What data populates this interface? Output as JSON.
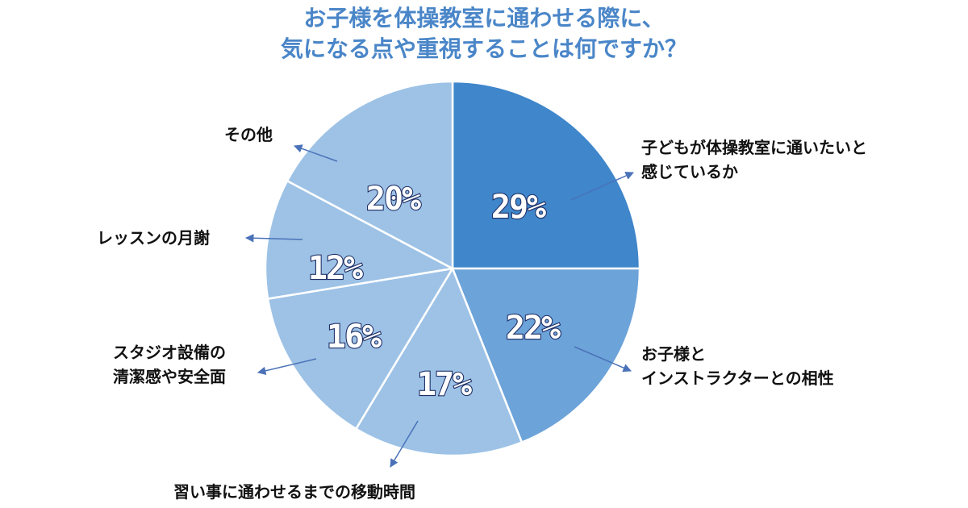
{
  "title_lines": [
    "お子様を体操教室に通わせる際に、",
    "気になる点や重視することは何ですか？"
  ],
  "colors": {
    "title": "#4a86c8",
    "arrow": "#4a72b8",
    "edge": "#ffffff"
  },
  "chart_data": {
    "type": "pie",
    "title": "お子様を体操教室に通わせる際に、気になる点や重視することは何ですか？",
    "unit": "%",
    "legend": "none",
    "slices": [
      {
        "label_lines": [
          "子どもが体操教室に通いたいと",
          "感じているか"
        ],
        "value": 29,
        "display": "29%",
        "color": "#3f86cb"
      },
      {
        "label_lines": [
          "お子様と",
          "インストラクターとの相性"
        ],
        "value": 22,
        "display": "22%",
        "color": "#6ca3d9"
      },
      {
        "label_lines": [
          "習い事に通わせるまでの移動時間"
        ],
        "value": 17,
        "display": "17%",
        "color": "#9dc2e6"
      },
      {
        "label_lines": [
          "スタジオ設備の",
          "清潔感や安全面"
        ],
        "value": 16,
        "display": "16%",
        "color": "#9dc2e6"
      },
      {
        "label_lines": [
          "レッスンの月謝"
        ],
        "value": 12,
        "display": "12%",
        "color": "#9dc2e6"
      },
      {
        "label_lines": [
          "その他"
        ],
        "value": 20,
        "display": "20%",
        "color": "#9dc2e6"
      }
    ]
  }
}
